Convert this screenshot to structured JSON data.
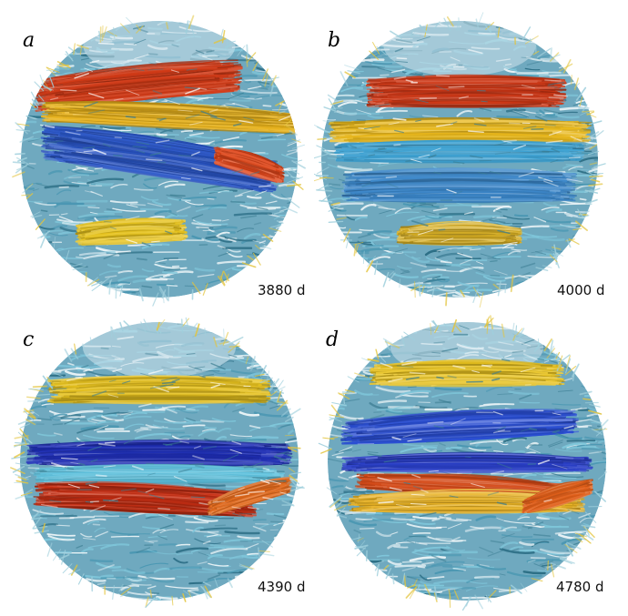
{
  "panels": [
    {
      "letter": "a",
      "time": "3880 d",
      "bands": [
        {
          "color": "#d23a16",
          "lat": -0.55,
          "width": 0.22,
          "tilt": -0.1,
          "span": 0.75,
          "shift": -0.15
        },
        {
          "color": "#e8b21a",
          "lat": -0.3,
          "width": 0.14,
          "tilt": 0.05,
          "span": 0.95,
          "shift": 0.1
        },
        {
          "color": "#2a56c8",
          "lat": 0.0,
          "width": 0.24,
          "tilt": 0.15,
          "span": 0.85,
          "shift": 0.0
        },
        {
          "color": "#e6c21c",
          "lat": 0.52,
          "width": 0.14,
          "tilt": -0.05,
          "span": 0.4,
          "shift": -0.2
        },
        {
          "color": "#e0461a",
          "lat": -0.15,
          "width": 0.12,
          "tilt": 0.3,
          "span": 0.25,
          "shift": 0.65
        }
      ]
    },
    {
      "letter": "b",
      "time": "4000 d",
      "bands": [
        {
          "color": "#cf3614",
          "lat": -0.48,
          "width": 0.2,
          "tilt": 0.0,
          "span": 0.72,
          "shift": 0.05
        },
        {
          "color": "#e8b81c",
          "lat": -0.2,
          "width": 0.14,
          "tilt": 0.0,
          "span": 0.95,
          "shift": 0.0
        },
        {
          "color": "#3ea2d2",
          "lat": -0.05,
          "width": 0.12,
          "tilt": 0.0,
          "span": 0.9,
          "shift": 0.0
        },
        {
          "color": "#3a86c9",
          "lat": 0.2,
          "width": 0.2,
          "tilt": 0.0,
          "span": 0.85,
          "shift": 0.0
        },
        {
          "color": "#d7ae22",
          "lat": 0.55,
          "width": 0.12,
          "tilt": 0.0,
          "span": 0.45,
          "shift": 0.0
        }
      ]
    },
    {
      "letter": "c",
      "time": "4390 d",
      "bands": [
        {
          "color": "#e6c11d",
          "lat": -0.5,
          "width": 0.16,
          "tilt": 0.0,
          "span": 0.8,
          "shift": 0.0
        },
        {
          "color": "#1f2fb8",
          "lat": -0.05,
          "width": 0.14,
          "tilt": 0.0,
          "span": 0.95,
          "shift": 0.0
        },
        {
          "color": "#5fc2de",
          "lat": 0.1,
          "width": 0.1,
          "tilt": 0.0,
          "span": 0.9,
          "shift": 0.0
        },
        {
          "color": "#c92f13",
          "lat": 0.28,
          "width": 0.16,
          "tilt": 0.05,
          "span": 0.8,
          "shift": -0.1
        },
        {
          "color": "#e46a1c",
          "lat": 0.45,
          "width": 0.1,
          "tilt": -0.3,
          "span": 0.3,
          "shift": 0.65
        }
      ]
    },
    {
      "letter": "d",
      "time": "4780 d",
      "bands": [
        {
          "color": "#e8c21e",
          "lat": -0.62,
          "width": 0.14,
          "tilt": 0.0,
          "span": 0.7,
          "shift": 0.0
        },
        {
          "color": "#2a4ed2",
          "lat": -0.25,
          "width": 0.16,
          "tilt": -0.05,
          "span": 0.85,
          "shift": -0.05
        },
        {
          "color": "#2a3fc8",
          "lat": 0.02,
          "width": 0.1,
          "tilt": 0.0,
          "span": 0.9,
          "shift": 0.0
        },
        {
          "color": "#d54a18",
          "lat": 0.18,
          "width": 0.1,
          "tilt": 0.05,
          "span": 0.8,
          "shift": 0.0
        },
        {
          "color": "#e8b01e",
          "lat": 0.3,
          "width": 0.12,
          "tilt": 0.0,
          "span": 0.85,
          "shift": 0.0
        },
        {
          "color": "#e2601a",
          "lat": 0.45,
          "width": 0.1,
          "tilt": -0.3,
          "span": 0.25,
          "shift": 0.65
        }
      ]
    }
  ],
  "colors": {
    "sphere_base": "#6fa9bf",
    "polar_cap": "#cfe4ec",
    "filament_light": "#e9f3f6",
    "filament_dark": "#2d6f86"
  }
}
